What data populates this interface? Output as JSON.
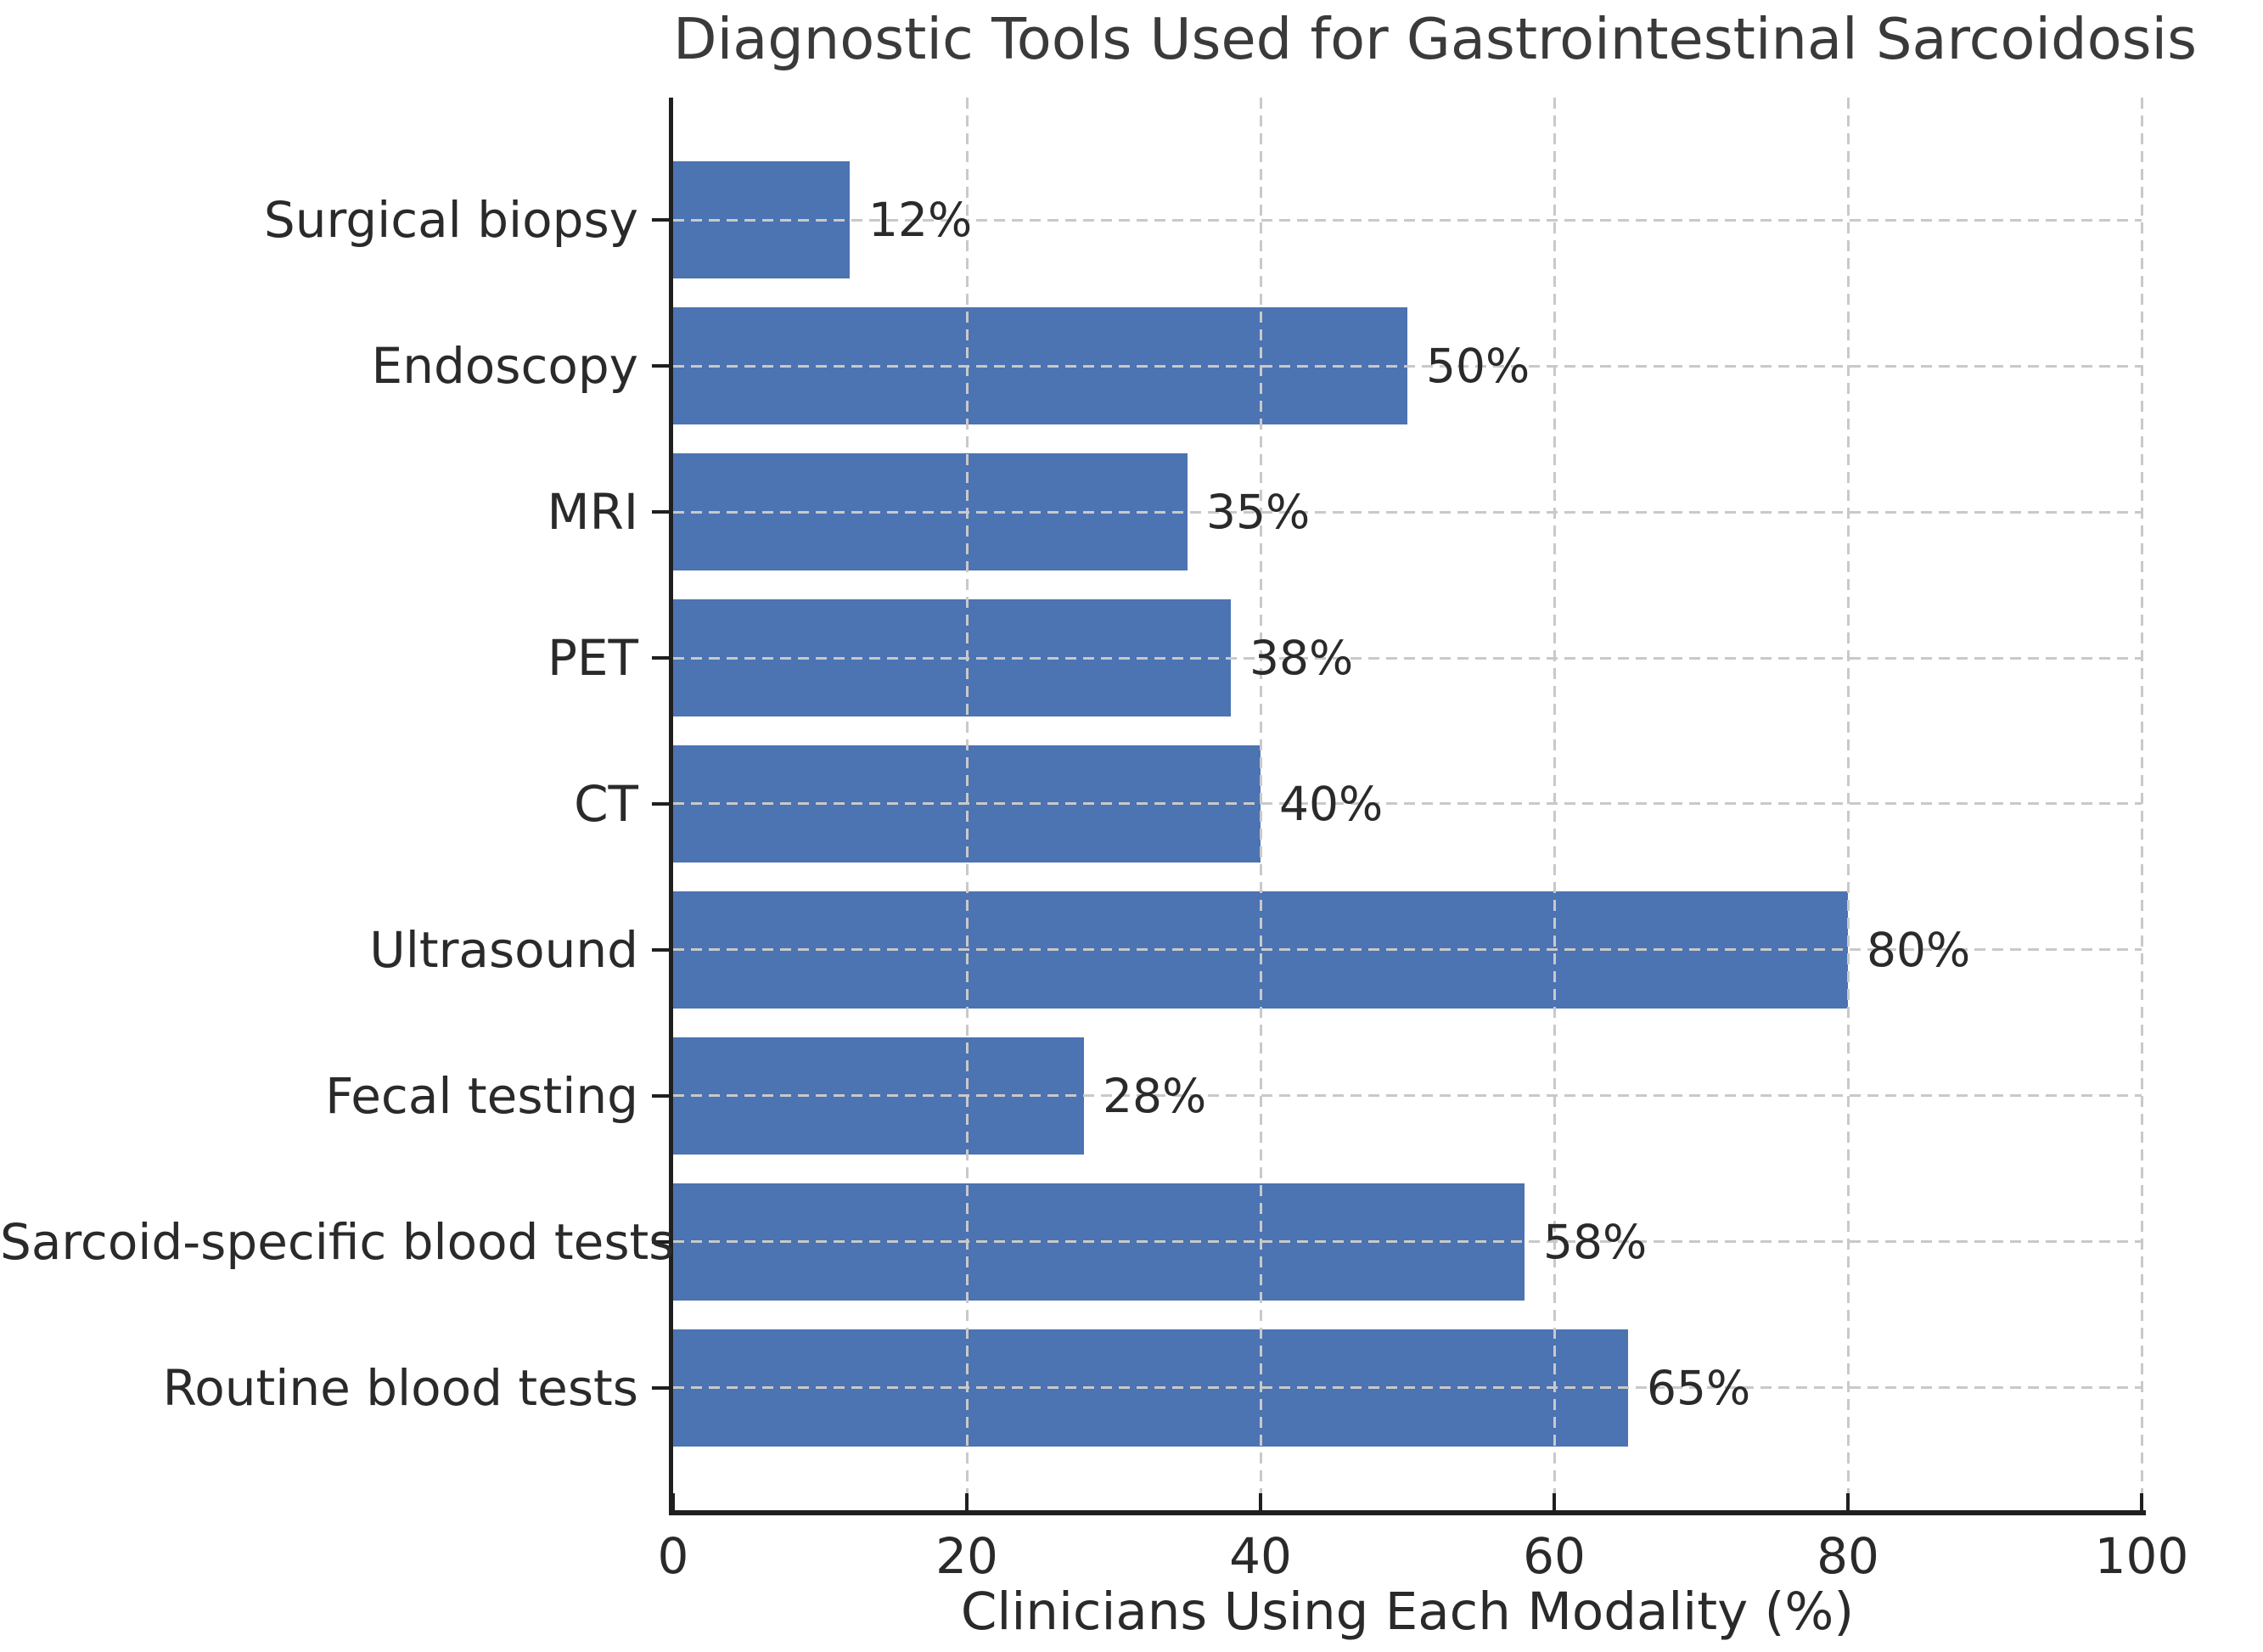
{
  "chart_data": {
    "type": "bar",
    "orientation": "horizontal",
    "title": "Diagnostic Tools Used for Gastrointestinal Sarcoidosis",
    "xlabel": "Clinicians Using Each Modality (%)",
    "ylabel": "",
    "categories": [
      "Surgical biopsy",
      "Endoscopy",
      "MRI",
      "PET",
      "CT",
      "Ultrasound",
      "Fecal testing",
      "Sarcoid-specific blood tests",
      "Routine blood tests"
    ],
    "values": [
      12,
      50,
      35,
      38,
      40,
      80,
      28,
      58,
      65
    ],
    "value_labels": [
      "12%",
      "50%",
      "35%",
      "38%",
      "40%",
      "80%",
      "28%",
      "58%",
      "65%"
    ],
    "xlim": [
      0,
      100
    ],
    "xticks": [
      0,
      20,
      40,
      60,
      80,
      100
    ],
    "xtick_labels": [
      "0",
      "20",
      "40",
      "60",
      "80",
      "100"
    ],
    "grid": "dashed gridlines on both axes, drawn over bars",
    "legend": "none",
    "colors": {
      "bar": "#4c73b2",
      "grid": "#c9c9c9",
      "spine": "#1f1f1f",
      "text": "#2a2a2a",
      "title": "#3a3a3a",
      "background": "#ffffff"
    }
  }
}
